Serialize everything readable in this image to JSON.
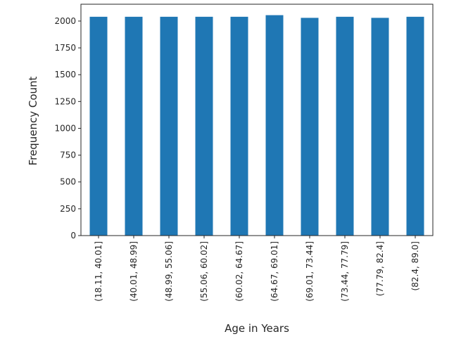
{
  "chart_data": {
    "type": "bar",
    "x_label": "Age in Years",
    "y_label": "Frequency Count",
    "categories": [
      "(18.11, 40.01]",
      "(40.01, 48.99]",
      "(48.99, 55.06]",
      "(55.06, 60.02]",
      "(60.02, 64.67]",
      "(64.67, 69.01]",
      "(69.01, 73.44]",
      "(73.44, 77.79]",
      "(77.79, 82.4]",
      "(82.4, 89.0]"
    ],
    "values": [
      2040,
      2040,
      2040,
      2040,
      2040,
      2055,
      2030,
      2040,
      2030,
      2040
    ],
    "color": "#1f77b4",
    "ylim": [
      0,
      2157
    ],
    "yticks": [
      0,
      250,
      500,
      750,
      1000,
      1250,
      1500,
      1750,
      2000
    ],
    "grid": false
  }
}
